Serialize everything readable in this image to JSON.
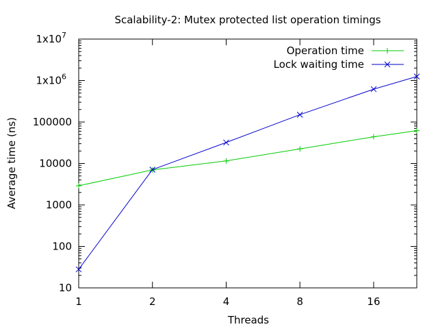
{
  "chart_data": {
    "type": "line",
    "title": "Scalability-2: Mutex protected list operation timings",
    "xlabel": "Threads",
    "ylabel": "Average time (ns)",
    "x_scale": "log2",
    "y_scale": "log10",
    "xlim": [
      1,
      24
    ],
    "ylim": [
      10,
      10000000
    ],
    "grid": false,
    "legend_position": "top-right",
    "x_ticks": [
      {
        "value": 1,
        "label": "1"
      },
      {
        "value": 2,
        "label": "2"
      },
      {
        "value": 4,
        "label": "4"
      },
      {
        "value": 8,
        "label": "8"
      },
      {
        "value": 16,
        "label": "16"
      }
    ],
    "y_ticks": [
      {
        "value": 10,
        "label": "10"
      },
      {
        "value": 100,
        "label": "100"
      },
      {
        "value": 1000,
        "label": "1000"
      },
      {
        "value": 10000,
        "label": "10000"
      },
      {
        "value": 100000,
        "label": "100000"
      },
      {
        "value": 1000000,
        "base": "1x10",
        "exp": "6"
      },
      {
        "value": 10000000,
        "base": "1x10",
        "exp": "7"
      }
    ],
    "series": [
      {
        "name": "Operation time",
        "color": "#00cc00",
        "marker": "plus",
        "x": [
          1,
          2,
          4,
          8,
          16,
          24
        ],
        "values": [
          2900,
          7000,
          11500,
          22500,
          44000,
          62000
        ]
      },
      {
        "name": "Lock waiting time",
        "color": "#0000cc",
        "marker": "cross",
        "x": [
          1,
          2,
          4,
          8,
          16,
          24
        ],
        "values": [
          28,
          7100,
          32000,
          150000,
          620000,
          1250000
        ]
      }
    ]
  }
}
